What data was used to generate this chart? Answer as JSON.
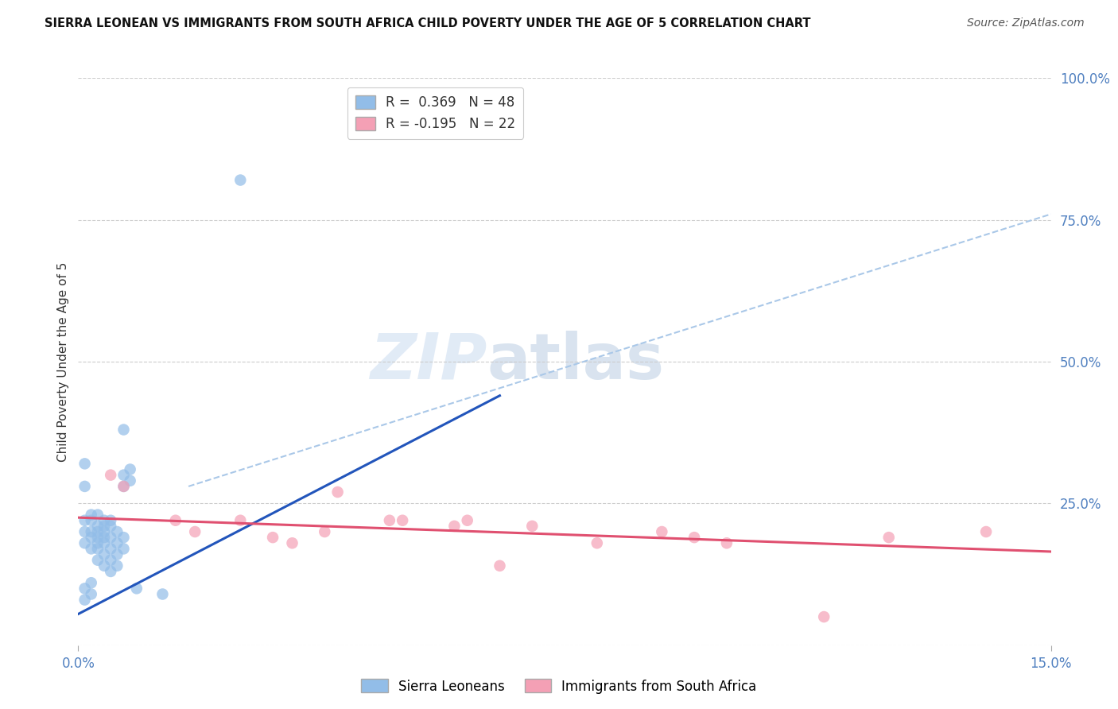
{
  "title": "SIERRA LEONEAN VS IMMIGRANTS FROM SOUTH AFRICA CHILD POVERTY UNDER THE AGE OF 5 CORRELATION CHART",
  "source": "Source: ZipAtlas.com",
  "ylabel": "Child Poverty Under the Age of 5",
  "xlim": [
    0.0,
    0.15
  ],
  "ylim": [
    0.0,
    1.0
  ],
  "yticks": [
    0.0,
    0.25,
    0.5,
    0.75,
    1.0
  ],
  "ytick_labels": [
    "",
    "25.0%",
    "50.0%",
    "75.0%",
    "100.0%"
  ],
  "xtick_labels": [
    "0.0%",
    "15.0%"
  ],
  "xticks": [
    0.0,
    0.15
  ],
  "R1": 0.369,
  "N1": 48,
  "R2": -0.195,
  "N2": 22,
  "legend_label1": "Sierra Leoneans",
  "legend_label2": "Immigrants from South Africa",
  "color1": "#92bde8",
  "color2": "#f4a0b5",
  "trendline1_color": "#2255bb",
  "trendline2_color": "#e05070",
  "dashed_line_color": "#aac8e8",
  "watermark_zip": "ZIP",
  "watermark_atlas": "atlas",
  "blue_scatter": [
    [
      0.001,
      0.18
    ],
    [
      0.001,
      0.2
    ],
    [
      0.001,
      0.22
    ],
    [
      0.002,
      0.2
    ],
    [
      0.002,
      0.22
    ],
    [
      0.002,
      0.23
    ],
    [
      0.002,
      0.19
    ],
    [
      0.002,
      0.17
    ],
    [
      0.003,
      0.21
    ],
    [
      0.003,
      0.23
    ],
    [
      0.003,
      0.2
    ],
    [
      0.003,
      0.19
    ],
    [
      0.003,
      0.18
    ],
    [
      0.003,
      0.17
    ],
    [
      0.003,
      0.15
    ],
    [
      0.004,
      0.22
    ],
    [
      0.004,
      0.21
    ],
    [
      0.004,
      0.2
    ],
    [
      0.004,
      0.19
    ],
    [
      0.004,
      0.18
    ],
    [
      0.004,
      0.16
    ],
    [
      0.004,
      0.14
    ],
    [
      0.005,
      0.22
    ],
    [
      0.005,
      0.21
    ],
    [
      0.005,
      0.19
    ],
    [
      0.005,
      0.17
    ],
    [
      0.005,
      0.15
    ],
    [
      0.005,
      0.13
    ],
    [
      0.006,
      0.2
    ],
    [
      0.006,
      0.18
    ],
    [
      0.006,
      0.16
    ],
    [
      0.006,
      0.14
    ],
    [
      0.007,
      0.3
    ],
    [
      0.007,
      0.28
    ],
    [
      0.007,
      0.19
    ],
    [
      0.007,
      0.17
    ],
    [
      0.008,
      0.31
    ],
    [
      0.008,
      0.29
    ],
    [
      0.001,
      0.28
    ],
    [
      0.001,
      0.32
    ],
    [
      0.001,
      0.1
    ],
    [
      0.001,
      0.08
    ],
    [
      0.002,
      0.09
    ],
    [
      0.002,
      0.11
    ],
    [
      0.025,
      0.82
    ],
    [
      0.007,
      0.38
    ],
    [
      0.009,
      0.1
    ],
    [
      0.013,
      0.09
    ]
  ],
  "pink_scatter": [
    [
      0.005,
      0.3
    ],
    [
      0.007,
      0.28
    ],
    [
      0.015,
      0.22
    ],
    [
      0.018,
      0.2
    ],
    [
      0.025,
      0.22
    ],
    [
      0.03,
      0.19
    ],
    [
      0.033,
      0.18
    ],
    [
      0.038,
      0.2
    ],
    [
      0.04,
      0.27
    ],
    [
      0.048,
      0.22
    ],
    [
      0.05,
      0.22
    ],
    [
      0.058,
      0.21
    ],
    [
      0.06,
      0.22
    ],
    [
      0.065,
      0.14
    ],
    [
      0.07,
      0.21
    ],
    [
      0.08,
      0.18
    ],
    [
      0.09,
      0.2
    ],
    [
      0.095,
      0.19
    ],
    [
      0.1,
      0.18
    ],
    [
      0.115,
      0.05
    ],
    [
      0.125,
      0.19
    ],
    [
      0.14,
      0.2
    ]
  ],
  "blue_trendline": [
    [
      0.0,
      0.055
    ],
    [
      0.065,
      0.44
    ]
  ],
  "dashed_trendline": [
    [
      0.017,
      0.28
    ],
    [
      0.15,
      0.76
    ]
  ],
  "pink_trendline": [
    [
      0.0,
      0.225
    ],
    [
      0.15,
      0.165
    ]
  ]
}
